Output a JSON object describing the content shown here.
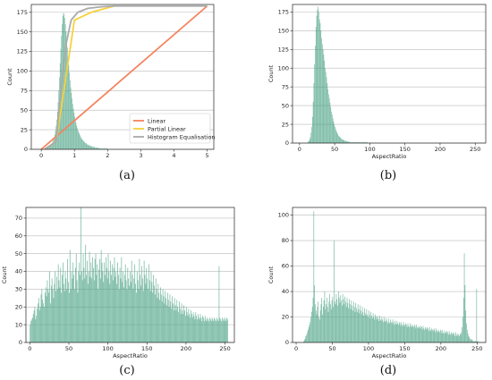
{
  "colors": {
    "hist": "#3d9b7c",
    "linear": "#f4845f",
    "partial_linear": "#f7d13a",
    "histogram_equalisation": "#aaaaaa",
    "grid": "#bbbbbb"
  },
  "chart_data": [
    {
      "id": "a",
      "type": "line",
      "caption": "(a)",
      "xlabel": "",
      "ylabel": "Count",
      "xlim": [
        -0.3,
        5.2
      ],
      "ylim": [
        0,
        185
      ],
      "xticks": [
        0,
        1,
        2,
        3,
        4,
        5
      ],
      "yticks": [
        0,
        25,
        50,
        75,
        100,
        125,
        150,
        175
      ],
      "grid": "y",
      "legend": "lower-right",
      "histogram": {
        "bin_width": 0.02,
        "x_start": 0.1,
        "values": [
          1,
          1,
          2,
          2,
          3,
          3,
          4,
          5,
          5,
          6,
          7,
          8,
          10,
          12,
          15,
          19,
          24,
          30,
          38,
          48,
          60,
          75,
          92,
          110,
          128,
          145,
          160,
          170,
          174,
          173,
          168,
          160,
          150,
          140,
          130,
          118,
          108,
          98,
          88,
          79,
          72,
          65,
          58,
          52,
          47,
          42,
          38,
          34,
          30,
          27,
          24,
          22,
          20,
          18,
          16,
          14,
          13,
          12,
          11,
          10,
          9,
          8,
          8,
          7,
          6,
          6,
          5,
          5,
          5,
          4,
          4,
          4,
          3,
          3,
          3,
          3,
          2,
          2,
          2,
          2,
          2,
          2,
          1,
          1,
          1,
          1,
          1,
          1,
          1,
          1,
          1,
          1,
          1,
          1,
          1
        ]
      },
      "series": [
        {
          "name": "Linear",
          "x": [
            0,
            5
          ],
          "y": [
            0,
            183
          ]
        },
        {
          "name": "Partial Linear",
          "x": [
            0.1,
            0.45,
            1.0,
            1.5,
            2.2
          ],
          "y": [
            0,
            10,
            165,
            175,
            183
          ]
        },
        {
          "name": "Histogram Equalisation",
          "x": [
            0.1,
            0.45,
            0.6,
            0.75,
            0.9,
            1.1,
            1.4,
            1.8,
            2.2,
            5.0
          ],
          "y": [
            0,
            10,
            80,
            135,
            165,
            175,
            180,
            182,
            183,
            183
          ]
        }
      ]
    },
    {
      "id": "b",
      "type": "bar",
      "caption": "(b)",
      "xlabel": "AspectRatio",
      "ylabel": "Count",
      "xlim": [
        -10,
        265
      ],
      "ylim": [
        0,
        185
      ],
      "xticks": [
        0,
        50,
        100,
        150,
        200,
        250
      ],
      "yticks": [
        0,
        25,
        50,
        75,
        100,
        125,
        150,
        175
      ],
      "grid": "y",
      "bin_width": 1,
      "x_start": 12,
      "values": [
        2,
        3,
        5,
        8,
        14,
        22,
        35,
        55,
        80,
        105,
        130,
        155,
        170,
        178,
        182,
        175,
        165,
        160,
        150,
        140,
        132,
        125,
        118,
        110,
        100,
        95,
        88,
        80,
        72,
        65,
        60,
        54,
        48,
        42,
        38,
        33,
        29,
        25,
        22,
        19,
        16,
        14,
        12,
        10,
        9,
        8,
        7,
        6,
        5,
        5,
        4,
        4,
        3,
        3,
        3,
        2,
        2,
        2,
        2,
        1,
        1,
        1,
        1,
        1,
        1,
        1,
        1,
        1,
        1,
        1,
        1,
        1,
        1,
        1,
        1,
        1,
        1,
        1,
        1,
        1,
        1,
        1,
        1,
        1,
        1
      ]
    },
    {
      "id": "c",
      "type": "bar",
      "caption": "(c)",
      "xlabel": "AspectRatio",
      "ylabel": "Count",
      "xlim": [
        -5,
        262
      ],
      "ylim": [
        0,
        76
      ],
      "xticks": [
        0,
        50,
        100,
        150,
        200,
        250
      ],
      "yticks": [
        0,
        10,
        20,
        30,
        40,
        50,
        60,
        70
      ],
      "grid": "y",
      "bin_width": 1,
      "x_start": 0,
      "values": [
        10,
        12,
        13,
        14,
        16,
        18,
        20,
        13,
        15,
        19,
        22,
        25,
        18,
        20,
        27,
        30,
        24,
        22,
        20,
        28,
        31,
        26,
        35,
        30,
        28,
        40,
        22,
        32,
        36,
        30,
        25,
        33,
        40,
        29,
        37,
        30,
        44,
        35,
        31,
        42,
        28,
        38,
        45,
        33,
        29,
        40,
        36,
        30,
        47,
        34,
        28,
        52,
        30,
        40,
        36,
        45,
        38,
        30,
        42,
        50,
        35,
        28,
        40,
        45,
        38,
        76,
        40,
        35,
        50,
        42,
        36,
        55,
        38,
        46,
        33,
        40,
        51,
        37,
        45,
        36,
        48,
        42,
        35,
        47,
        50,
        38,
        44,
        30,
        41,
        47,
        36,
        52,
        45,
        40,
        34,
        45,
        38,
        48,
        42,
        36,
        50,
        40,
        33,
        46,
        38,
        44,
        35,
        42,
        48,
        37,
        40,
        33,
        45,
        38,
        30,
        42,
        36,
        48,
        34,
        40,
        31,
        38,
        44,
        35,
        30,
        42,
        36,
        32,
        40,
        34,
        46,
        38,
        30,
        36,
        44,
        33,
        28,
        40,
        35,
        30,
        47,
        38,
        32,
        43,
        36,
        29,
        46,
        38,
        33,
        42,
        36,
        30,
        44,
        35,
        29,
        40,
        34,
        28,
        38,
        32,
        27,
        36,
        30,
        25,
        33,
        28,
        24,
        31,
        27,
        23,
        30,
        26,
        22,
        29,
        25,
        21,
        28,
        24,
        20,
        27,
        23,
        19,
        26,
        22,
        18,
        25,
        21,
        18,
        24,
        20,
        17,
        23,
        19,
        16,
        22,
        18,
        16,
        21,
        18,
        15,
        20,
        17,
        15,
        19,
        16,
        14,
        18,
        16,
        14,
        17,
        15,
        13,
        17,
        15,
        13,
        16,
        14,
        13,
        16,
        14,
        12,
        15,
        14,
        12,
        15,
        13,
        12,
        14,
        13,
        12,
        14,
        13,
        12,
        14,
        13,
        12,
        14,
        13,
        12,
        14,
        13,
        12,
        43,
        14,
        13,
        12,
        14,
        13,
        12,
        14,
        13,
        12,
        14,
        13
      ]
    },
    {
      "id": "d",
      "type": "bar",
      "caption": "(d)",
      "xlabel": "AspectRatio",
      "ylabel": "Count",
      "xlim": [
        -5,
        262
      ],
      "ylim": [
        0,
        106
      ],
      "xticks": [
        0,
        50,
        100,
        150,
        200,
        250
      ],
      "yticks": [
        0,
        20,
        40,
        60,
        80,
        100
      ],
      "grid": "y",
      "bin_width": 1,
      "x_start": 10,
      "values": [
        1,
        2,
        3,
        5,
        6,
        8,
        10,
        12,
        14,
        16,
        20,
        24,
        28,
        35,
        103,
        45,
        30,
        25,
        22,
        28,
        32,
        20,
        18,
        25,
        30,
        35,
        22,
        28,
        33,
        40,
        26,
        30,
        35,
        28,
        24,
        32,
        38,
        30,
        26,
        33,
        36,
        28,
        80,
        32,
        30,
        38,
        34,
        29,
        40,
        35,
        31,
        37,
        33,
        29,
        38,
        34,
        30,
        36,
        32,
        28,
        35,
        31,
        27,
        34,
        30,
        26,
        33,
        29,
        25,
        32,
        28,
        24,
        31,
        27,
        24,
        30,
        26,
        23,
        29,
        25,
        22,
        28,
        24,
        21,
        27,
        23,
        21,
        26,
        22,
        20,
        25,
        22,
        19,
        24,
        21,
        19,
        23,
        20,
        18,
        22,
        20,
        18,
        21,
        19,
        17,
        21,
        18,
        17,
        20,
        18,
        16,
        20,
        17,
        16,
        19,
        17,
        15,
        19,
        16,
        15,
        18,
        16,
        15,
        18,
        16,
        14,
        17,
        15,
        14,
        17,
        15,
        14,
        16,
        15,
        13,
        16,
        14,
        13,
        16,
        14,
        13,
        15,
        14,
        12,
        15,
        13,
        12,
        15,
        13,
        12,
        14,
        13,
        12,
        14,
        13,
        11,
        14,
        12,
        11,
        13,
        12,
        11,
        13,
        12,
        10,
        13,
        11,
        10,
        12,
        11,
        10,
        12,
        11,
        9,
        12,
        10,
        9,
        11,
        10,
        9,
        11,
        10,
        8,
        11,
        9,
        8,
        10,
        9,
        8,
        10,
        9,
        7,
        10,
        8,
        7,
        9,
        8,
        7,
        9,
        8,
        6,
        9,
        7,
        6,
        8,
        7,
        6,
        8,
        7,
        5,
        8,
        6,
        5,
        7,
        6,
        5,
        7,
        6,
        8,
        12,
        20,
        35,
        70,
        45,
        25,
        15,
        10,
        7,
        5,
        4,
        3,
        2,
        3,
        2,
        1,
        1,
        1,
        1,
        1,
        42,
        1,
        1
      ]
    }
  ]
}
